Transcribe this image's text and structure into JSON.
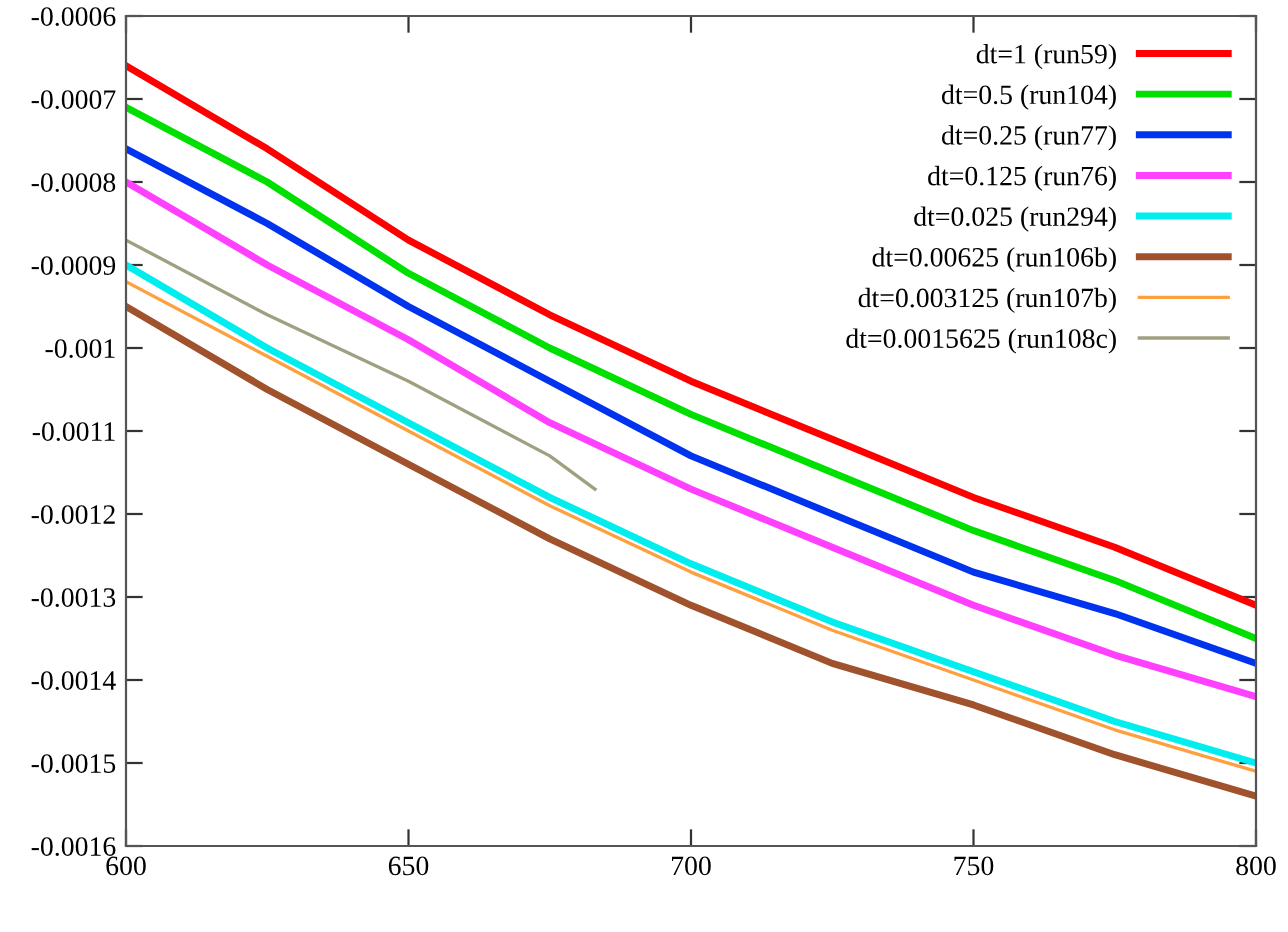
{
  "chart_data": {
    "type": "line",
    "xlim": [
      600,
      800
    ],
    "ylim": [
      -0.0016,
      -0.0006
    ],
    "xticks": [
      600,
      650,
      700,
      750,
      800
    ],
    "yticks": [
      -0.0016,
      -0.0015,
      -0.0014,
      -0.0013,
      -0.0012,
      -0.0011,
      -0.001,
      -0.0009,
      -0.0008,
      -0.0007,
      -0.0006
    ],
    "grid": false,
    "legend": "top right",
    "marker": "none",
    "line_style": "solid",
    "series": [
      {
        "name": "dt=1 (run59)",
        "color": "#ff0000",
        "x": [
          600,
          625,
          650,
          675,
          700,
          725,
          750,
          775,
          800
        ],
        "values": [
          -0.00066,
          -0.00076,
          -0.00087,
          -0.00096,
          -0.00104,
          -0.00111,
          -0.00118,
          -0.00124,
          -0.00131
        ]
      },
      {
        "name": "dt=0.5 (run104)",
        "color": "#00e000",
        "x": [
          600,
          625,
          650,
          675,
          700,
          725,
          750,
          775,
          800
        ],
        "values": [
          -0.00071,
          -0.0008,
          -0.00091,
          -0.001,
          -0.00108,
          -0.00115,
          -0.00122,
          -0.00128,
          -0.00135
        ]
      },
      {
        "name": "dt=0.25 (run77)",
        "color": "#0033ee",
        "x": [
          600,
          625,
          650,
          675,
          700,
          725,
          750,
          775,
          800
        ],
        "values": [
          -0.00076,
          -0.00085,
          -0.00095,
          -0.00104,
          -0.00113,
          -0.0012,
          -0.00127,
          -0.00132,
          -0.00138
        ]
      },
      {
        "name": "dt=0.125 (run76)",
        "color": "#ff40ff",
        "x": [
          600,
          625,
          650,
          675,
          700,
          725,
          750,
          775,
          800
        ],
        "values": [
          -0.0008,
          -0.0009,
          -0.00099,
          -0.00109,
          -0.00117,
          -0.00124,
          -0.00131,
          -0.00137,
          -0.00142
        ]
      },
      {
        "name": "dt=0.025 (run294)",
        "color": "#00eeee",
        "x": [
          600,
          625,
          650,
          675,
          700,
          725,
          750,
          775,
          800
        ],
        "values": [
          -0.0009,
          -0.001,
          -0.00109,
          -0.00118,
          -0.00126,
          -0.00133,
          -0.00139,
          -0.00145,
          -0.0015
        ]
      },
      {
        "name": "dt=0.00625 (run106b)",
        "color": "#a0522d",
        "x": [
          600,
          625,
          650,
          675,
          700,
          725,
          750,
          775,
          800
        ],
        "values": [
          -0.00095,
          -0.00105,
          -0.00114,
          -0.00123,
          -0.00131,
          -0.00138,
          -0.00143,
          -0.00149,
          -0.00154
        ]
      },
      {
        "name": "dt=0.003125 (run107b)",
        "color": "#ffa040",
        "x": [
          600,
          625,
          650,
          675,
          700,
          725,
          750,
          775,
          800
        ],
        "values": [
          -0.00092,
          -0.00101,
          -0.0011,
          -0.00119,
          -0.00127,
          -0.00134,
          -0.0014,
          -0.00146,
          -0.00151
        ]
      },
      {
        "name": "dt=0.0015625 (run108c)",
        "color": "#a0a080",
        "x": [
          600,
          625,
          650,
          675,
          683
        ],
        "values": [
          -0.00087,
          -0.00096,
          -0.00104,
          -0.00113,
          -0.00117
        ]
      }
    ]
  }
}
